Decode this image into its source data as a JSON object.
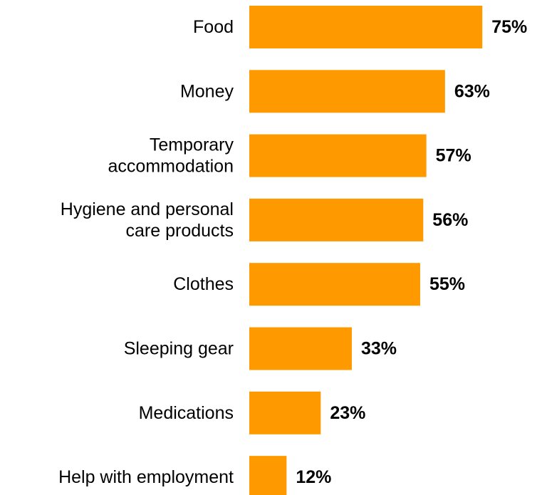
{
  "chart_data": {
    "type": "bar",
    "orientation": "horizontal",
    "categories": [
      [
        "Food"
      ],
      [
        "Money"
      ],
      [
        "Temporary",
        "accommodation"
      ],
      [
        "Hygiene and personal",
        "care products"
      ],
      [
        "Clothes"
      ],
      [
        "Sleeping gear"
      ],
      [
        "Medications"
      ],
      [
        "Help with employment"
      ]
    ],
    "values": [
      75,
      63,
      57,
      56,
      55,
      33,
      23,
      12
    ],
    "value_labels": [
      "75%",
      "63%",
      "57%",
      "56%",
      "55%",
      "33%",
      "23%",
      "12%"
    ],
    "unit": "%",
    "bar_color": "#FF9900",
    "grid": false,
    "legend": "none",
    "title": "",
    "xlabel": "",
    "ylabel": ""
  }
}
